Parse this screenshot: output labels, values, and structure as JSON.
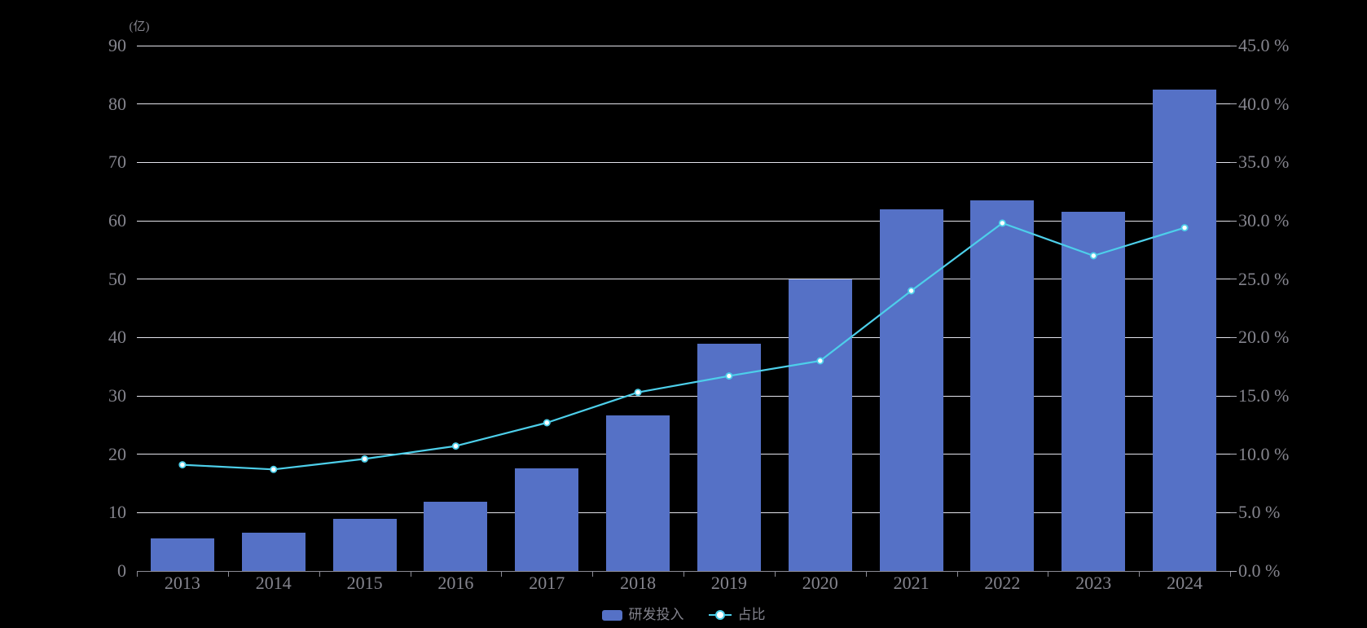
{
  "chart_data": {
    "type": "bar+line",
    "title": "",
    "categories": [
      "2013",
      "2014",
      "2015",
      "2016",
      "2017",
      "2018",
      "2019",
      "2020",
      "2021",
      "2022",
      "2023",
      "2024"
    ],
    "series": [
      {
        "name": "研发投入",
        "type": "bar",
        "yaxis": "left",
        "unit": "亿",
        "values": [
          5.6,
          6.5,
          8.9,
          11.9,
          17.6,
          26.7,
          39.0,
          50.0,
          62.0,
          63.5,
          61.5,
          82.4
        ]
      },
      {
        "name": "占比",
        "type": "line",
        "yaxis": "right",
        "unit": "%",
        "values": [
          9.1,
          8.7,
          9.6,
          10.7,
          12.7,
          15.3,
          16.7,
          18.0,
          24.0,
          29.8,
          27.0,
          29.4
        ]
      }
    ],
    "left_axis": {
      "name": "(亿)",
      "min": 0,
      "max": 90,
      "step": 10,
      "tick_labels": [
        "0",
        "10",
        "20",
        "30",
        "40",
        "50",
        "60",
        "70",
        "80",
        "90"
      ]
    },
    "right_axis": {
      "min": 0,
      "max": 45,
      "step": 5,
      "tick_labels": [
        "0.0 %",
        "5.0 %",
        "10.0 %",
        "15.0 %",
        "20.0 %",
        "25.0 %",
        "30.0 %",
        "35.0 %",
        "40.0 %",
        "45.0 %"
      ]
    },
    "legend": {
      "position": "bottom-center",
      "items": [
        "研发投入",
        "占比"
      ]
    },
    "grid": "horizontal",
    "colors": {
      "background": "#000000",
      "bar": "#5571C6",
      "line": "#4DCFEA",
      "marker_fill": "#FFFFFF",
      "gridline": "#E3E3EB",
      "axis_line": "#8B8B94",
      "label": "#85858E"
    }
  }
}
